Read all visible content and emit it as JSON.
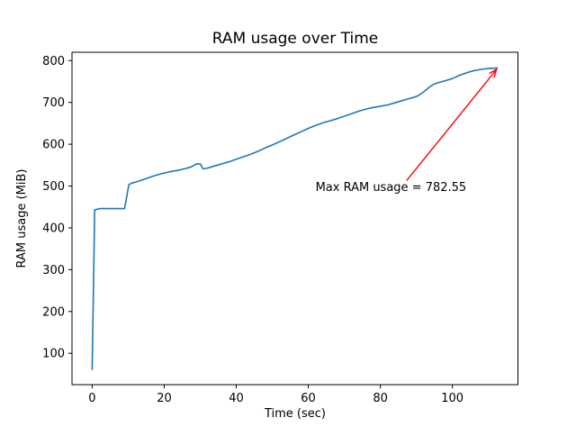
{
  "figure": {
    "background": "#ffffff"
  },
  "chart_data": {
    "type": "line",
    "title": "RAM usage over Time",
    "xlabel": "Time (sec)",
    "ylabel": "RAM usage (MiB)",
    "xlim": [
      -5.6,
      118.2
    ],
    "ylim": [
      25,
      820
    ],
    "xticks": [
      0,
      20,
      40,
      60,
      80,
      100
    ],
    "yticks": [
      100,
      200,
      300,
      400,
      500,
      600,
      700,
      800
    ],
    "grid": false,
    "legend": false,
    "line_color": "#1f77b4",
    "axis_color": "#000000",
    "series": [
      {
        "name": "RAM usage (MiB)",
        "points": [
          [
            0,
            60
          ],
          [
            0.7,
            443
          ],
          [
            2,
            446
          ],
          [
            9,
            446
          ],
          [
            10.2,
            503
          ],
          [
            11,
            507
          ],
          [
            13,
            512
          ],
          [
            15,
            518
          ],
          [
            17,
            524
          ],
          [
            19,
            529
          ],
          [
            20,
            531
          ],
          [
            22,
            535
          ],
          [
            24,
            538
          ],
          [
            26,
            542
          ],
          [
            27.5,
            546
          ],
          [
            29,
            553
          ],
          [
            30,
            553
          ],
          [
            30.8,
            541
          ],
          [
            32,
            543
          ],
          [
            34,
            548
          ],
          [
            36,
            553
          ],
          [
            38,
            558
          ],
          [
            40,
            564
          ],
          [
            42,
            570
          ],
          [
            44,
            576
          ],
          [
            46,
            583
          ],
          [
            48,
            591
          ],
          [
            50,
            598
          ],
          [
            52,
            606
          ],
          [
            54,
            614
          ],
          [
            56,
            622
          ],
          [
            58,
            630
          ],
          [
            60,
            638
          ],
          [
            62,
            645
          ],
          [
            64,
            651
          ],
          [
            66,
            656
          ],
          [
            68,
            661
          ],
          [
            70,
            667
          ],
          [
            72,
            673
          ],
          [
            74,
            679
          ],
          [
            76,
            684
          ],
          [
            78,
            688
          ],
          [
            80,
            691
          ],
          [
            82,
            694
          ],
          [
            84,
            699
          ],
          [
            86,
            704
          ],
          [
            88,
            709
          ],
          [
            90,
            714
          ],
          [
            91,
            719
          ],
          [
            92,
            725
          ],
          [
            93,
            732
          ],
          [
            94,
            739
          ],
          [
            95,
            744
          ],
          [
            96,
            747
          ],
          [
            98,
            752
          ],
          [
            100,
            757
          ],
          [
            102,
            765
          ],
          [
            104,
            771
          ],
          [
            106,
            776
          ],
          [
            108,
            779
          ],
          [
            110,
            781
          ],
          [
            112.6,
            782.55
          ]
        ]
      }
    ],
    "annotation": {
      "text": "Max RAM usage = 782.55",
      "color": "#ff0000",
      "point": [
        112.6,
        782.55
      ],
      "text_pos": [
        62,
        488
      ],
      "arrow_tail": [
        87.3,
        513
      ]
    }
  }
}
